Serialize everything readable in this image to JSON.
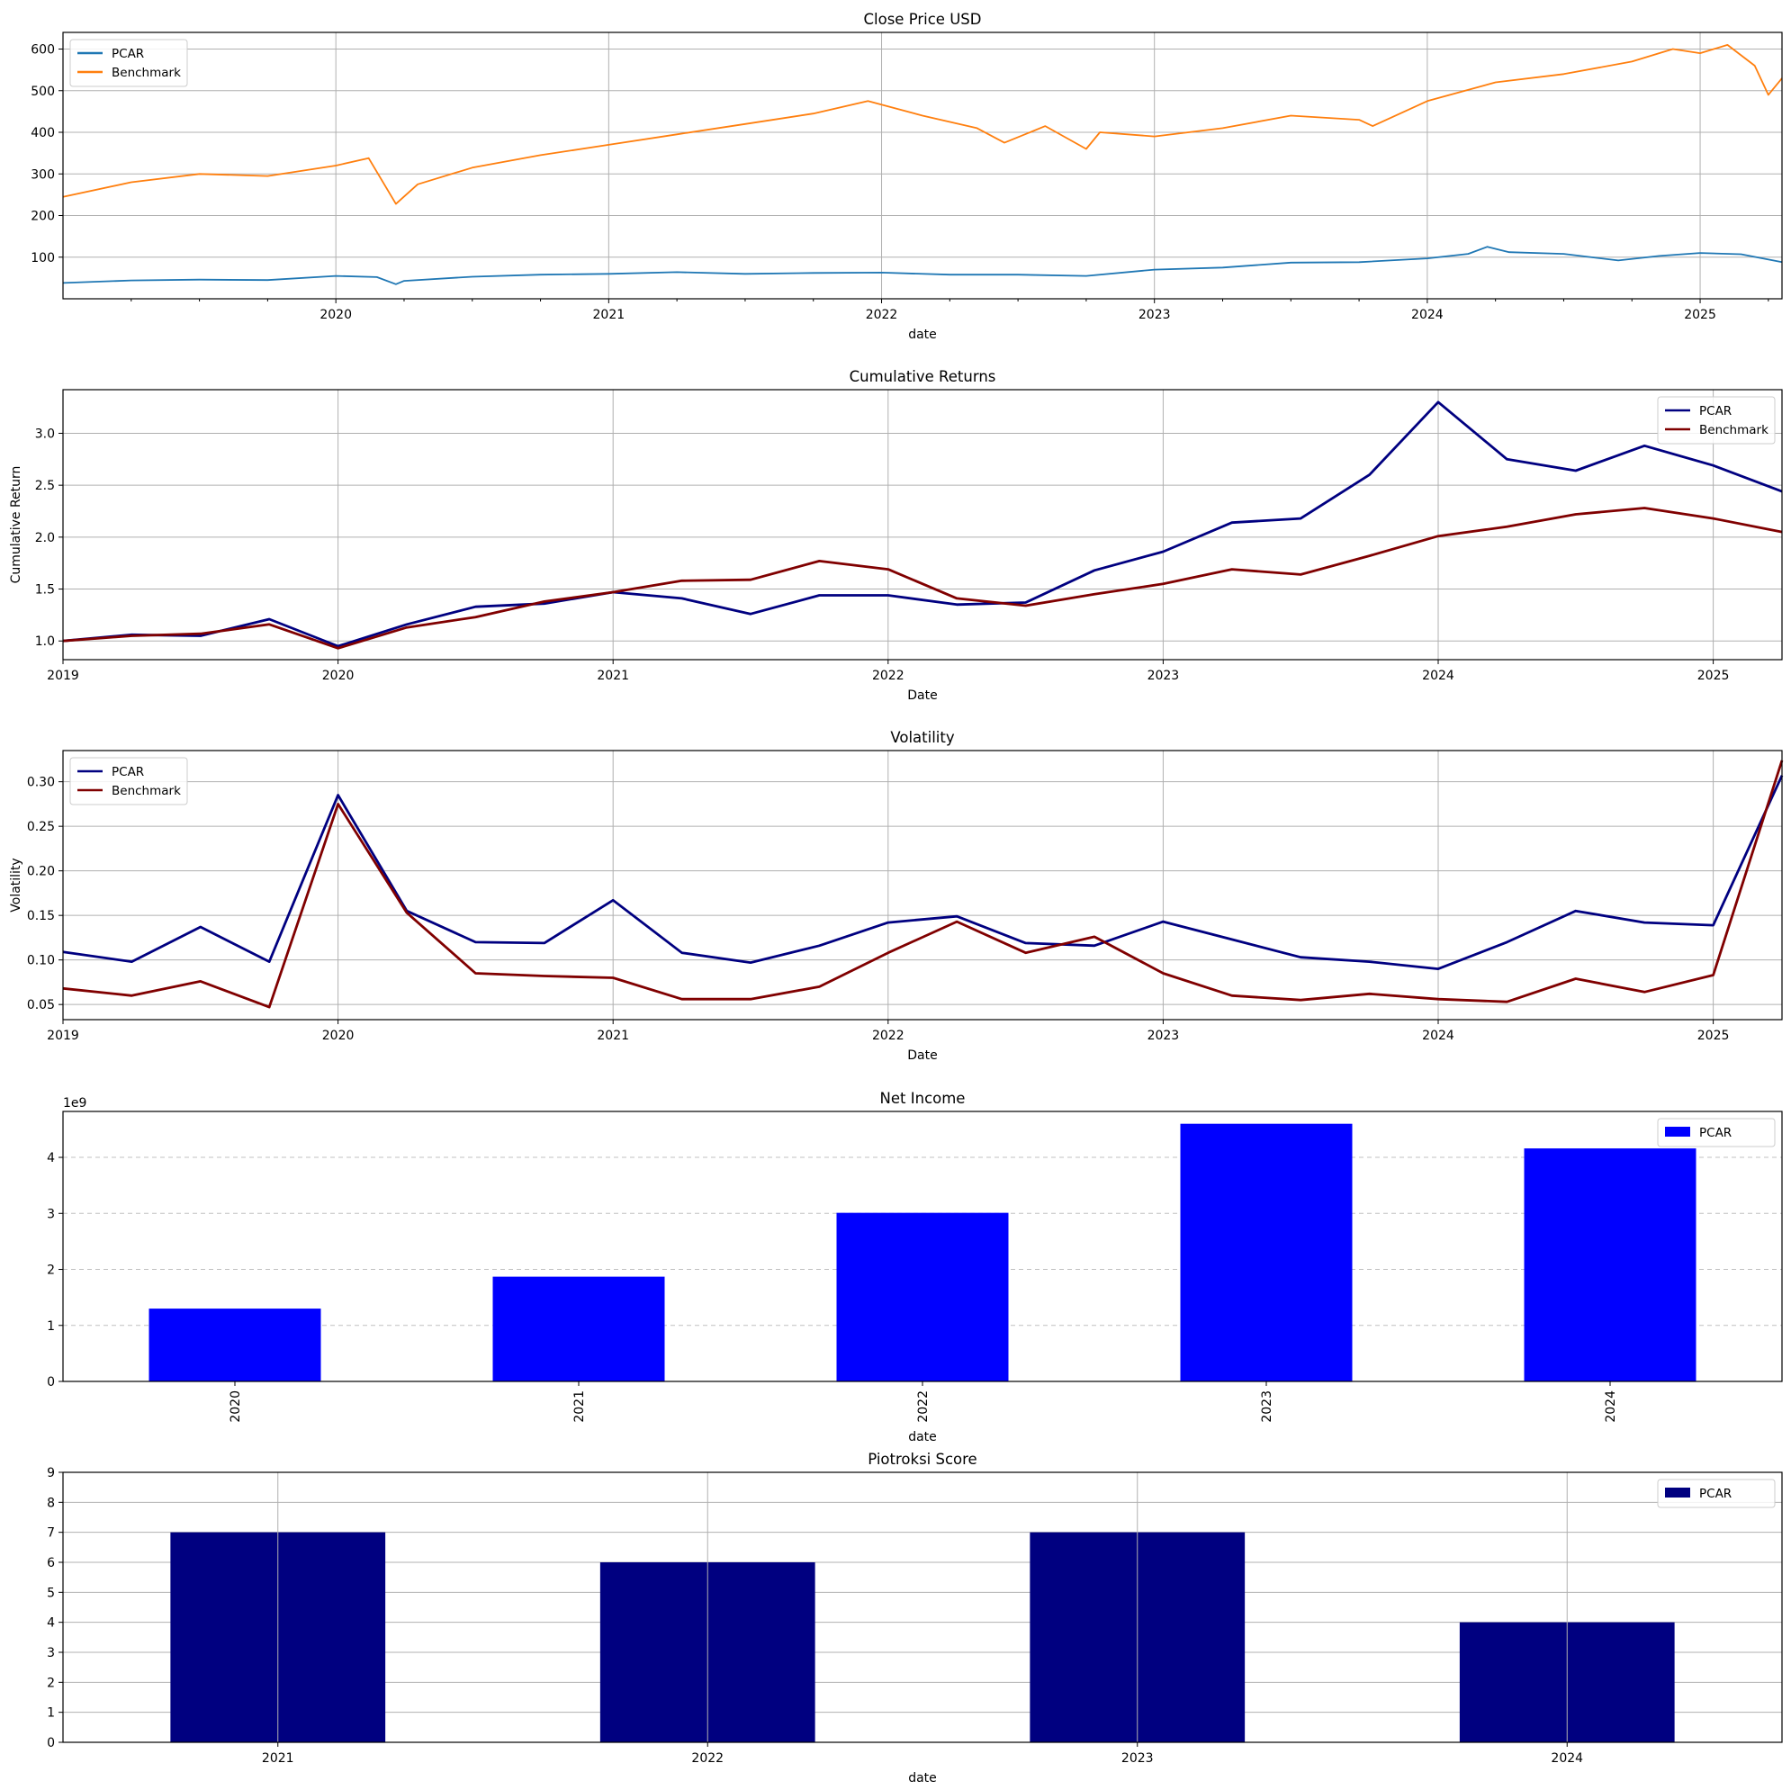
{
  "chart_data": [
    {
      "type": "line",
      "title": "Close Price USD",
      "xlabel": "date",
      "ylabel": "",
      "xlim": [
        2019.0,
        2025.3
      ],
      "ylim": [
        0,
        640
      ],
      "yticks": [
        100,
        200,
        300,
        400,
        500,
        600
      ],
      "xticks": [
        2020,
        2021,
        2022,
        2023,
        2024,
        2025
      ],
      "xtick_labels": [
        "2020",
        "2021",
        "2022",
        "2023",
        "2024",
        "2025"
      ],
      "grid": true,
      "legend": "top-left",
      "series": [
        {
          "name": "PCAR",
          "color": "#1f77b4",
          "x": [
            2019.0,
            2019.25,
            2019.5,
            2019.75,
            2020.0,
            2020.15,
            2020.22,
            2020.25,
            2020.5,
            2020.75,
            2021.0,
            2021.25,
            2021.5,
            2021.75,
            2022.0,
            2022.25,
            2022.5,
            2022.75,
            2023.0,
            2023.25,
            2023.5,
            2023.75,
            2024.0,
            2024.15,
            2024.22,
            2024.3,
            2024.5,
            2024.7,
            2024.85,
            2025.0,
            2025.15,
            2025.3
          ],
          "y": [
            38,
            44,
            46,
            45,
            55,
            52,
            35,
            43,
            53,
            58,
            60,
            64,
            60,
            62,
            63,
            58,
            58,
            55,
            70,
            75,
            87,
            88,
            97,
            108,
            125,
            112,
            108,
            92,
            103,
            110,
            107,
            88
          ]
        },
        {
          "name": "Benchmark",
          "color": "#ff7f0e",
          "x": [
            2019.0,
            2019.25,
            2019.5,
            2019.75,
            2020.0,
            2020.12,
            2020.22,
            2020.3,
            2020.5,
            2020.75,
            2021.0,
            2021.25,
            2021.5,
            2021.75,
            2021.95,
            2022.15,
            2022.35,
            2022.45,
            2022.6,
            2022.75,
            2022.8,
            2023.0,
            2023.25,
            2023.5,
            2023.75,
            2023.8,
            2024.0,
            2024.25,
            2024.5,
            2024.75,
            2024.9,
            2025.0,
            2025.1,
            2025.2,
            2025.25,
            2025.3
          ],
          "y": [
            245,
            280,
            300,
            295,
            320,
            338,
            228,
            275,
            315,
            345,
            370,
            395,
            420,
            445,
            475,
            440,
            410,
            375,
            415,
            360,
            400,
            390,
            410,
            440,
            430,
            415,
            475,
            520,
            540,
            570,
            600,
            590,
            610,
            560,
            490,
            530
          ]
        }
      ]
    },
    {
      "type": "line",
      "title": "Cumulative Returns",
      "xlabel": "Date",
      "ylabel": "Cumulative Return",
      "xlim": [
        2019.0,
        2025.25
      ],
      "ylim": [
        0.82,
        3.42
      ],
      "yticks": [
        1.0,
        1.5,
        2.0,
        2.5,
        3.0
      ],
      "ytick_labels": [
        "1.0",
        "1.5",
        "2.0",
        "2.5",
        "3.0"
      ],
      "xticks": [
        2019,
        2020,
        2021,
        2022,
        2023,
        2024,
        2025
      ],
      "xtick_labels": [
        "2019",
        "2020",
        "2021",
        "2022",
        "2023",
        "2024",
        "2025"
      ],
      "grid": true,
      "legend": "top-right",
      "series": [
        {
          "name": "PCAR",
          "color": "#000080",
          "x": [
            2019.0,
            2019.25,
            2019.5,
            2019.75,
            2020.0,
            2020.25,
            2020.5,
            2020.75,
            2021.0,
            2021.25,
            2021.5,
            2021.75,
            2022.0,
            2022.25,
            2022.5,
            2022.75,
            2023.0,
            2023.25,
            2023.5,
            2023.75,
            2024.0,
            2024.25,
            2024.5,
            2024.75,
            2025.0,
            2025.25
          ],
          "y": [
            1.0,
            1.06,
            1.05,
            1.21,
            0.95,
            1.16,
            1.33,
            1.36,
            1.47,
            1.41,
            1.26,
            1.44,
            1.44,
            1.35,
            1.37,
            1.68,
            1.86,
            2.14,
            2.18,
            2.6,
            3.3,
            2.75,
            2.64,
            2.88,
            2.69,
            2.44
          ]
        },
        {
          "name": "Benchmark",
          "color": "#800000",
          "x": [
            2019.0,
            2019.25,
            2019.5,
            2019.75,
            2020.0,
            2020.25,
            2020.5,
            2020.75,
            2021.0,
            2021.25,
            2021.5,
            2021.75,
            2022.0,
            2022.25,
            2022.5,
            2022.75,
            2023.0,
            2023.25,
            2023.5,
            2023.75,
            2024.0,
            2024.25,
            2024.5,
            2024.75,
            2025.0,
            2025.25
          ],
          "y": [
            1.0,
            1.05,
            1.07,
            1.16,
            0.93,
            1.13,
            1.23,
            1.38,
            1.47,
            1.58,
            1.59,
            1.77,
            1.69,
            1.41,
            1.34,
            1.45,
            1.55,
            1.69,
            1.64,
            1.82,
            2.01,
            2.1,
            2.22,
            2.28,
            2.18,
            2.05
          ]
        }
      ]
    },
    {
      "type": "line",
      "title": "Volatility",
      "xlabel": "Date",
      "ylabel": "Volatility",
      "xlim": [
        2019.0,
        2025.25
      ],
      "ylim": [
        0.033,
        0.335
      ],
      "yticks": [
        0.05,
        0.1,
        0.15,
        0.2,
        0.25,
        0.3
      ],
      "ytick_labels": [
        "0.05",
        "0.10",
        "0.15",
        "0.20",
        "0.25",
        "0.30"
      ],
      "xticks": [
        2019,
        2020,
        2021,
        2022,
        2023,
        2024,
        2025
      ],
      "xtick_labels": [
        "2019",
        "2020",
        "2021",
        "2022",
        "2023",
        "2024",
        "2025"
      ],
      "grid": true,
      "legend": "top-left",
      "series": [
        {
          "name": "PCAR",
          "color": "#000080",
          "x": [
            2019.0,
            2019.25,
            2019.5,
            2019.75,
            2020.0,
            2020.25,
            2020.5,
            2020.75,
            2021.0,
            2021.25,
            2021.5,
            2021.75,
            2022.0,
            2022.25,
            2022.5,
            2022.75,
            2023.0,
            2023.25,
            2023.5,
            2023.75,
            2024.0,
            2024.25,
            2024.5,
            2024.75,
            2025.0,
            2025.25
          ],
          "y": [
            0.109,
            0.098,
            0.137,
            0.098,
            0.285,
            0.155,
            0.12,
            0.119,
            0.167,
            0.108,
            0.097,
            0.116,
            0.142,
            0.149,
            0.119,
            0.116,
            0.143,
            0.123,
            0.103,
            0.098,
            0.09,
            0.12,
            0.155,
            0.142,
            0.139,
            0.307
          ]
        },
        {
          "name": "Benchmark",
          "color": "#800000",
          "x": [
            2019.0,
            2019.25,
            2019.5,
            2019.75,
            2020.0,
            2020.25,
            2020.5,
            2020.75,
            2021.0,
            2021.25,
            2021.5,
            2021.75,
            2022.0,
            2022.25,
            2022.5,
            2022.75,
            2023.0,
            2023.25,
            2023.5,
            2023.75,
            2024.0,
            2024.25,
            2024.5,
            2024.75,
            2025.0,
            2025.25
          ],
          "y": [
            0.068,
            0.06,
            0.076,
            0.047,
            0.275,
            0.153,
            0.085,
            0.082,
            0.08,
            0.056,
            0.056,
            0.07,
            0.108,
            0.143,
            0.108,
            0.126,
            0.085,
            0.06,
            0.055,
            0.062,
            0.056,
            0.053,
            0.079,
            0.064,
            0.083,
            0.324
          ]
        }
      ]
    },
    {
      "type": "bar",
      "title": "Net Income",
      "xlabel": "date",
      "ylabel": "",
      "scale_note": "1e9",
      "categories": [
        "2020",
        "2021",
        "2022",
        "2023",
        "2024"
      ],
      "ylim": [
        0,
        4.82
      ],
      "yticks": [
        0,
        1,
        2,
        3,
        4
      ],
      "grid": "horizontal-dashed",
      "legend": "top-right",
      "series": [
        {
          "name": "PCAR",
          "color": "#0000ff",
          "values": [
            1.3,
            1.87,
            3.01,
            4.6,
            4.16
          ]
        }
      ]
    },
    {
      "type": "bar",
      "title": "Piotroksi Score",
      "xlabel": "date",
      "ylabel": "",
      "categories": [
        "2021",
        "2022",
        "2023",
        "2024"
      ],
      "ylim": [
        0,
        9
      ],
      "yticks": [
        0,
        1,
        2,
        3,
        4,
        5,
        6,
        7,
        8,
        9
      ],
      "grid": true,
      "legend": "top-right",
      "series": [
        {
          "name": "PCAR",
          "color": "#000080",
          "values": [
            7,
            6,
            7,
            4
          ]
        }
      ]
    }
  ]
}
